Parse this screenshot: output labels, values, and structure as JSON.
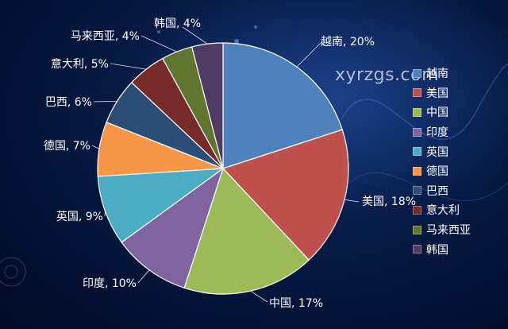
{
  "watermark": "xyrzgs.com",
  "chart_data": {
    "type": "pie",
    "labels": [
      "越南",
      "美国",
      "中国",
      "印度",
      "英国",
      "德国",
      "巴西",
      "意大利",
      "马来西亚",
      "韩国"
    ],
    "values": [
      20,
      18,
      17,
      10,
      9,
      7,
      6,
      5,
      4,
      4
    ],
    "data_labels": [
      "越南, 20%",
      "美国, 18%",
      "中国, 17%",
      "印度, 10%",
      "英国, 9%",
      "德国, 7%",
      "巴西, 6%",
      "意大利, 5%",
      "马来西亚, 4%",
      "韩国, 4%"
    ],
    "colors": [
      "#4f81bd",
      "#c0504d",
      "#9bbb59",
      "#8064a2",
      "#4bacc6",
      "#f79646",
      "#2c4d75",
      "#772c2a",
      "#5f7530",
      "#4d3b62"
    ],
    "legend_position": "right",
    "start_angle": "12 o'clock, clockwise"
  }
}
